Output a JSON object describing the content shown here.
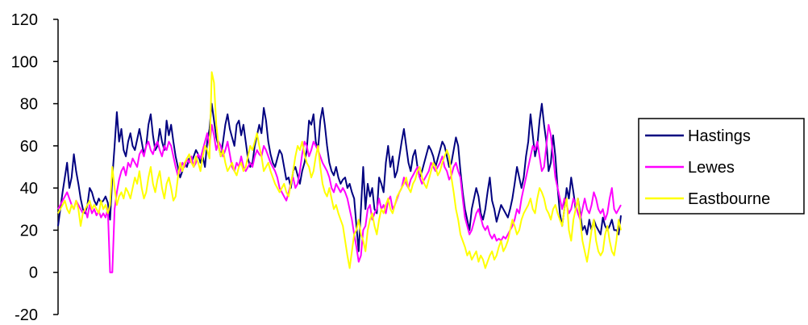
{
  "chart_data": {
    "type": "line",
    "title": "",
    "xlabel": "",
    "ylabel": "",
    "ylim": [
      -20,
      120
    ],
    "yticks": [
      -20,
      0,
      20,
      40,
      60,
      80,
      100,
      120
    ],
    "grid": false,
    "legend_position": "right",
    "n_points": 250,
    "series": [
      {
        "name": "Hastings",
        "color": "#000080",
        "values": [
          22,
          30,
          38,
          45,
          52,
          40,
          45,
          56,
          48,
          42,
          35,
          30,
          28,
          32,
          40,
          38,
          34,
          32,
          35,
          33,
          34,
          36,
          33,
          25,
          45,
          60,
          76,
          62,
          68,
          58,
          55,
          62,
          66,
          60,
          58,
          63,
          68,
          62,
          56,
          60,
          70,
          75,
          65,
          58,
          60,
          68,
          62,
          58,
          72,
          65,
          70,
          62,
          55,
          50,
          45,
          48,
          52,
          50,
          54,
          52,
          55,
          58,
          56,
          52,
          55,
          50,
          62,
          68,
          80,
          72,
          64,
          60,
          55,
          62,
          70,
          75,
          68,
          64,
          60,
          70,
          72,
          65,
          70,
          62,
          54,
          50,
          52,
          60,
          65,
          70,
          66,
          78,
          72,
          62,
          56,
          52,
          50,
          54,
          58,
          56,
          50,
          44,
          45,
          40,
          48,
          50,
          46,
          42,
          48,
          52,
          58,
          72,
          70,
          75,
          62,
          58,
          72,
          78,
          70,
          60,
          52,
          48,
          46,
          50,
          45,
          42,
          44,
          45,
          40,
          42,
          38,
          35,
          22,
          10,
          30,
          50,
          30,
          42,
          36,
          40,
          30,
          28,
          45,
          42,
          38,
          52,
          60,
          50,
          55,
          45,
          48,
          55,
          62,
          68,
          60,
          52,
          48,
          55,
          58,
          50,
          45,
          48,
          52,
          56,
          60,
          58,
          55,
          50,
          54,
          58,
          62,
          60,
          55,
          50,
          52,
          58,
          64,
          60,
          48,
          38,
          30,
          25,
          20,
          30,
          35,
          40,
          36,
          28,
          25,
          30,
          38,
          45,
          34,
          30,
          24,
          28,
          32,
          30,
          28,
          26,
          30,
          35,
          42,
          50,
          45,
          40,
          45,
          55,
          62,
          75,
          65,
          55,
          60,
          72,
          80,
          70,
          62,
          48,
          52,
          65,
          55,
          40,
          28,
          22,
          30,
          40,
          35,
          45,
          38,
          30,
          35,
          28,
          20,
          22,
          18,
          25,
          20,
          25,
          22,
          20,
          18,
          26,
          22,
          20,
          22,
          25,
          20,
          20,
          18,
          27
        ],
        "tail_note": "",
        "dips": []
      },
      {
        "name": "Lewes",
        "color": "#FF00FF",
        "values": [
          30,
          32,
          34,
          36,
          38,
          35,
          32,
          30,
          34,
          32,
          30,
          28,
          30,
          26,
          32,
          28,
          30,
          27,
          29,
          26,
          28,
          26,
          30,
          0,
          0,
          30,
          38,
          44,
          48,
          50,
          46,
          52,
          50,
          54,
          52,
          50,
          56,
          58,
          55,
          60,
          62,
          58,
          56,
          60,
          62,
          58,
          55,
          60,
          58,
          62,
          60,
          55,
          50,
          46,
          48,
          52,
          50,
          54,
          52,
          55,
          50,
          52,
          56,
          54,
          58,
          62,
          66,
          60,
          70,
          65,
          58,
          62,
          60,
          55,
          58,
          62,
          56,
          50,
          48,
          52,
          50,
          55,
          50,
          48,
          50,
          52,
          50,
          55,
          58,
          56,
          55,
          60,
          58,
          55,
          52,
          50,
          48,
          45,
          40,
          38,
          36,
          34,
          38,
          42,
          45,
          40,
          42,
          48,
          56,
          62,
          60,
          55,
          58,
          62,
          60,
          58,
          55,
          52,
          50,
          48,
          45,
          40,
          38,
          42,
          40,
          38,
          40,
          38,
          35,
          30,
          25,
          18,
          12,
          5,
          8,
          20,
          22,
          30,
          32,
          25,
          28,
          30,
          35,
          30,
          32,
          28,
          34,
          36,
          30,
          32,
          35,
          38,
          40,
          45,
          42,
          40,
          44,
          46,
          48,
          50,
          45,
          42,
          44,
          46,
          48,
          52,
          50,
          48,
          50,
          52,
          55,
          50,
          48,
          44,
          46,
          50,
          52,
          48,
          45,
          35,
          26,
          22,
          18,
          20,
          24,
          28,
          30,
          26,
          22,
          20,
          22,
          18,
          16,
          18,
          15,
          16,
          15,
          17,
          16,
          18,
          20,
          22,
          25,
          30,
          28,
          35,
          40,
          45,
          50,
          55,
          60,
          58,
          62,
          55,
          48,
          50,
          60,
          70,
          65,
          55,
          45,
          40,
          35,
          30,
          35,
          32,
          28,
          30,
          35,
          32,
          28,
          25,
          30,
          35,
          30,
          28,
          32,
          38,
          35,
          30,
          28,
          30,
          25,
          28,
          35,
          40,
          30,
          28,
          30,
          32
        ],
        "tail_note": "",
        "dips": []
      },
      {
        "name": "Eastbourne",
        "color": "#FFFF00",
        "values": [
          28,
          30,
          32,
          34,
          30,
          28,
          32,
          30,
          34,
          30,
          22,
          28,
          30,
          32,
          34,
          30,
          32,
          30,
          28,
          34,
          30,
          32,
          28,
          32,
          50,
          40,
          32,
          36,
          38,
          35,
          40,
          38,
          35,
          40,
          45,
          42,
          48,
          40,
          35,
          38,
          45,
          50,
          42,
          38,
          44,
          48,
          40,
          35,
          42,
          45,
          40,
          34,
          36,
          45,
          52,
          48,
          52,
          54,
          56,
          52,
          50,
          55,
          52,
          48,
          55,
          60,
          58,
          54,
          95,
          90,
          70,
          60,
          55,
          58,
          52,
          48,
          50,
          52,
          48,
          46,
          50,
          52,
          48,
          50,
          55,
          60,
          58,
          62,
          66,
          60,
          55,
          48,
          50,
          52,
          48,
          45,
          42,
          40,
          38,
          40,
          42,
          38,
          36,
          42,
          48,
          55,
          60,
          58,
          62,
          56,
          52,
          50,
          45,
          48,
          55,
          60,
          50,
          42,
          38,
          36,
          40,
          35,
          30,
          32,
          28,
          25,
          22,
          15,
          8,
          2,
          10,
          18,
          20,
          25,
          18,
          15,
          10,
          20,
          25,
          28,
          22,
          18,
          25,
          30,
          28,
          32,
          35,
          30,
          28,
          32,
          36,
          38,
          40,
          42,
          45,
          40,
          38,
          42,
          44,
          48,
          50,
          45,
          42,
          40,
          44,
          48,
          52,
          50,
          46,
          48,
          52,
          55,
          58,
          55,
          45,
          38,
          30,
          25,
          18,
          15,
          12,
          8,
          10,
          6,
          8,
          10,
          5,
          8,
          6,
          2,
          5,
          8,
          10,
          6,
          8,
          12,
          15,
          10,
          12,
          15,
          20,
          25,
          22,
          18,
          20,
          25,
          28,
          30,
          32,
          35,
          30,
          28,
          35,
          40,
          38,
          35,
          30,
          28,
          25,
          30,
          32,
          28,
          25,
          22,
          30,
          35,
          20,
          15,
          25,
          30,
          35,
          25,
          15,
          10,
          5,
          12,
          20,
          25,
          15,
          10,
          8,
          10,
          18,
          22,
          15,
          10,
          8,
          15,
          25,
          20
        ],
        "tail_note": "",
        "dips": []
      }
    ]
  }
}
